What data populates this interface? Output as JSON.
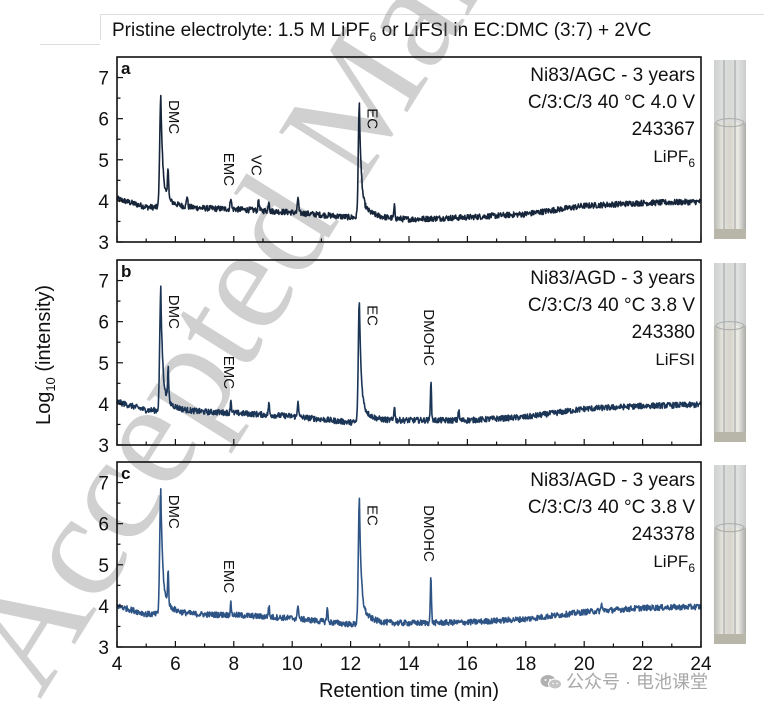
{
  "chart_data": {
    "type": "line",
    "title": "Pristine electrolyte: 1.5 M LiPF6 or LiFSI in EC:DMC (3:7) + 2VC",
    "title_parts": {
      "pre": "Pristine electrolyte: 1.5 M LiPF",
      "sub": "6",
      "post": " or LiFSI in EC:DMC (3:7) + 2VC"
    },
    "xlabel": "Retention time (min)",
    "ylabel": {
      "pre": "Log",
      "sub": "10",
      "post": " (intensity)"
    },
    "xlim": [
      4,
      24
    ],
    "ylim": [
      3,
      7.5
    ],
    "xticks": [
      4,
      6,
      8,
      10,
      12,
      14,
      16,
      18,
      20,
      22,
      24
    ],
    "yticks": [
      3,
      4,
      5,
      6,
      7
    ],
    "grid": false,
    "panels": [
      {
        "label": "a",
        "color": "#16253a",
        "info": [
          "Ni83/AGC - 3 years",
          "C/3:C/3 40 °C 4.0 V",
          "243367"
        ],
        "salt": {
          "pre": "LiPF",
          "sub": "6"
        },
        "baseline": [
          [
            4,
            4.05
          ],
          [
            5,
            3.85
          ],
          [
            8,
            3.8
          ],
          [
            10,
            3.72
          ],
          [
            12,
            3.6
          ],
          [
            14,
            3.55
          ],
          [
            16,
            3.6
          ],
          [
            18,
            3.68
          ],
          [
            20,
            3.88
          ],
          [
            22,
            3.95
          ],
          [
            24,
            3.98
          ]
        ],
        "peaks": [
          {
            "name": "DMC",
            "x": 5.5,
            "y": 6.6,
            "labeled": true
          },
          {
            "name": "",
            "x": 5.75,
            "y": 4.6,
            "labeled": false
          },
          {
            "name": "",
            "x": 6.4,
            "y": 4.1,
            "labeled": false
          },
          {
            "name": "EMC",
            "x": 7.9,
            "y": 4.1,
            "labeled": true
          },
          {
            "name": "VC",
            "x": 8.85,
            "y": 4.05,
            "labeled": true
          },
          {
            "name": "",
            "x": 9.2,
            "y": 4.0,
            "labeled": false
          },
          {
            "name": "",
            "x": 10.2,
            "y": 4.1,
            "labeled": false
          },
          {
            "name": "EC",
            "x": 12.3,
            "y": 6.35,
            "labeled": true
          },
          {
            "name": "",
            "x": 13.5,
            "y": 3.85,
            "labeled": false
          }
        ]
      },
      {
        "label": "b",
        "color": "#1b3556",
        "info": [
          "Ni83/AGD - 3 years",
          "C/3:C/3 40 °C 3.8 V",
          "243380"
        ],
        "salt": {
          "pre": "LiFSI",
          "sub": ""
        },
        "baseline": [
          [
            4,
            4.05
          ],
          [
            5,
            3.85
          ],
          [
            8,
            3.78
          ],
          [
            10,
            3.7
          ],
          [
            12,
            3.55
          ],
          [
            14,
            3.6
          ],
          [
            16,
            3.6
          ],
          [
            18,
            3.68
          ],
          [
            20,
            3.88
          ],
          [
            22,
            3.95
          ],
          [
            24,
            3.98
          ]
        ],
        "peaks": [
          {
            "name": "DMC",
            "x": 5.5,
            "y": 6.8,
            "labeled": true
          },
          {
            "name": "",
            "x": 5.75,
            "y": 4.65,
            "labeled": false
          },
          {
            "name": "EMC",
            "x": 7.9,
            "y": 4.1,
            "labeled": true
          },
          {
            "name": "",
            "x": 9.2,
            "y": 4.0,
            "labeled": false
          },
          {
            "name": "",
            "x": 10.2,
            "y": 4.1,
            "labeled": false
          },
          {
            "name": "EC",
            "x": 12.3,
            "y": 6.5,
            "labeled": true
          },
          {
            "name": "",
            "x": 13.5,
            "y": 3.95,
            "labeled": false
          },
          {
            "name": "DMOHC",
            "x": 14.75,
            "y": 4.55,
            "labeled": true
          },
          {
            "name": "",
            "x": 15.7,
            "y": 3.85,
            "labeled": false
          }
        ]
      },
      {
        "label": "c",
        "color": "#2e5486",
        "info": [
          "Ni83/AGD - 3 years",
          "C/3:C/3 40 °C 3.8 V",
          "243378"
        ],
        "salt": {
          "pre": "LiPF",
          "sub": "6"
        },
        "baseline": [
          [
            4,
            4.0
          ],
          [
            5,
            3.8
          ],
          [
            8,
            3.78
          ],
          [
            10,
            3.7
          ],
          [
            12,
            3.55
          ],
          [
            14,
            3.58
          ],
          [
            16,
            3.6
          ],
          [
            18,
            3.68
          ],
          [
            20,
            3.85
          ],
          [
            22,
            3.95
          ],
          [
            24,
            3.98
          ]
        ],
        "peaks": [
          {
            "name": "DMC",
            "x": 5.5,
            "y": 6.85,
            "labeled": true
          },
          {
            "name": "",
            "x": 5.75,
            "y": 4.6,
            "labeled": false
          },
          {
            "name": "EMC",
            "x": 7.9,
            "y": 4.05,
            "labeled": true
          },
          {
            "name": "",
            "x": 9.2,
            "y": 4.0,
            "labeled": false
          },
          {
            "name": "",
            "x": 10.2,
            "y": 4.05,
            "labeled": false
          },
          {
            "name": "",
            "x": 11.2,
            "y": 3.95,
            "labeled": false
          },
          {
            "name": "EC",
            "x": 12.3,
            "y": 6.55,
            "labeled": true
          },
          {
            "name": "DMOHC",
            "x": 14.75,
            "y": 4.7,
            "labeled": true
          },
          {
            "name": "",
            "x": 20.6,
            "y": 4.05,
            "labeled": false
          }
        ]
      }
    ]
  },
  "watermark": {
    "text": "公众号 · 电池课堂",
    "icon": "wechat-icon"
  },
  "background_watermark": "Accepted Manuscript"
}
